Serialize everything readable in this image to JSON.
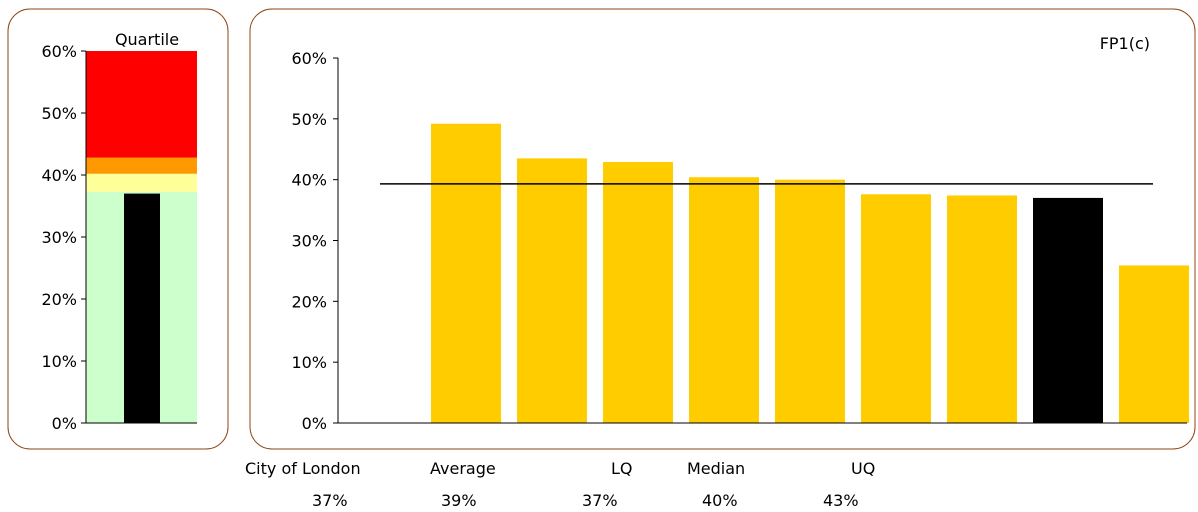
{
  "quartile_chart": {
    "title": "Quartile",
    "ylim": [
      0,
      60
    ],
    "yticks": [
      0,
      10,
      20,
      30,
      40,
      50,
      60
    ],
    "tick_format": "%",
    "bands": [
      {
        "from": 0,
        "to": 37.3,
        "color": "#ccffcc"
      },
      {
        "from": 37.3,
        "to": 40.2,
        "color": "#ffff99"
      },
      {
        "from": 40.2,
        "to": 42.8,
        "color": "#ff9900"
      },
      {
        "from": 42.8,
        "to": 60,
        "color": "#ff0000"
      }
    ],
    "value": 37,
    "value_color": "#000000"
  },
  "chart_data": {
    "type": "bar",
    "title": "FP1(c)",
    "xlabel": "",
    "ylabel": "",
    "ylim": [
      0,
      60
    ],
    "yticks": [
      0,
      10,
      20,
      30,
      40,
      50,
      60
    ],
    "tick_format": "%",
    "grid": false,
    "values": [
      49.2,
      43.5,
      42.9,
      40.4,
      40.0,
      37.6,
      37.4,
      37.0,
      25.9
    ],
    "colors": [
      "#ffcc00",
      "#ffcc00",
      "#ffcc00",
      "#ffcc00",
      "#ffcc00",
      "#ffcc00",
      "#ffcc00",
      "#000000",
      "#ffcc00"
    ],
    "reference_line": {
      "value": 39.3,
      "color": "#000000"
    }
  },
  "summary": {
    "labels": [
      "City of London",
      "Average",
      "LQ",
      "Median",
      "UQ"
    ],
    "values": [
      "37%",
      "39%",
      "37%",
      "40%",
      "43%"
    ]
  }
}
